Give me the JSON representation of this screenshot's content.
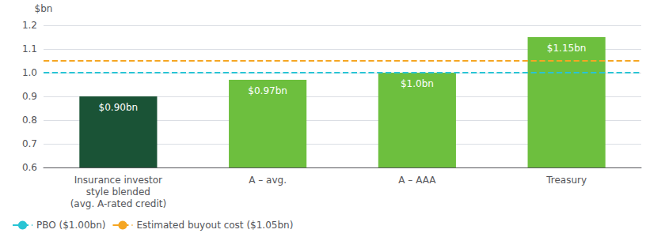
{
  "chart_data": {
    "type": "bar",
    "ylabel": "$bn",
    "categories": [
      "Insurance investor\nstyle blended\n(avg. A-rated credit)",
      "A – avg.",
      "A – AAA",
      "Treasury"
    ],
    "values": [
      0.9,
      0.97,
      1.0,
      1.15
    ],
    "value_labels": [
      "$0.90bn",
      "$0.97bn",
      "$1.0bn",
      "$1.15bn"
    ],
    "data_labels": true,
    "colors": [
      "#1a5336",
      "#6dbf3e",
      "#6dbf3e",
      "#6dbf3e"
    ],
    "ylim": [
      0.6,
      1.2
    ],
    "yticks": [
      0.6,
      0.7,
      0.8,
      0.9,
      {
        "value": 1.0,
        "label": "1.0"
      },
      1.1,
      1.2
    ],
    "grid": true,
    "legend": "bottom left",
    "reference_lines": [
      {
        "name": "PBO ($1.00bn)",
        "value": 1.0,
        "color": "#29c4d4",
        "line_style": "dashed"
      },
      {
        "name": "Estimated buyout cost ($1.05bn)",
        "value": 1.05,
        "color": "#f5a623",
        "line_style": "dashed"
      }
    ]
  }
}
